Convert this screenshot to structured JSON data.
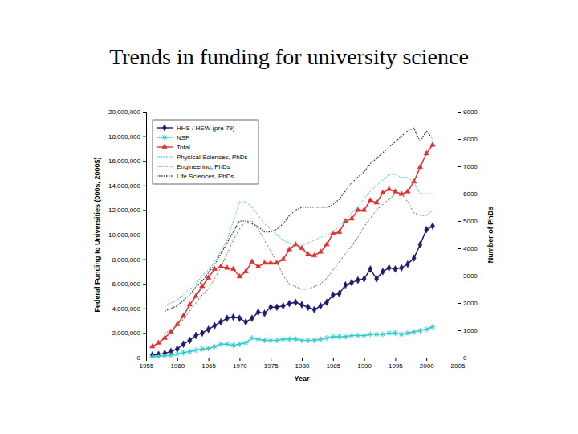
{
  "chart_data": {
    "type": "line",
    "title": "Trends in funding for university science",
    "xlabel": "Year",
    "ylabel": "Federal Funding to Universities (000s, 2000$)",
    "y2label": "Number of PhDs",
    "legend": "top-left",
    "x": [
      1956,
      1957,
      1958,
      1959,
      1960,
      1961,
      1962,
      1963,
      1964,
      1965,
      1966,
      1967,
      1968,
      1969,
      1970,
      1971,
      1972,
      1973,
      1974,
      1975,
      1976,
      1977,
      1978,
      1979,
      1980,
      1981,
      1982,
      1983,
      1984,
      1985,
      1986,
      1987,
      1988,
      1989,
      1990,
      1991,
      1992,
      1993,
      1994,
      1995,
      1996,
      1997,
      1998,
      1999,
      2000,
      2001
    ],
    "xlim": [
      1955,
      2005
    ],
    "xticks": [
      1955,
      1960,
      1965,
      1970,
      1975,
      1980,
      1985,
      1990,
      1995,
      2000,
      2005
    ],
    "ylim": [
      0,
      20000000
    ],
    "yticks": [
      0,
      {
        "value": 2000000,
        "label": "2,000,000"
      },
      {
        "value": 4000000,
        "label": "4,000,000"
      },
      {
        "value": 6000000,
        "label": "6,000,000"
      },
      {
        "value": 8000000,
        "label": "8,000,000"
      },
      {
        "value": 10000000,
        "label": "10,000,000"
      },
      {
        "value": 12000000,
        "label": "12,000,000"
      },
      {
        "value": 14000000,
        "label": "14,000,000"
      },
      {
        "value": 16000000,
        "label": "16,000,000"
      },
      {
        "value": 18000000,
        "label": "18,000,000"
      },
      {
        "value": 20000000,
        "label": "20,000,000"
      }
    ],
    "y2lim": [
      0,
      9000
    ],
    "y2ticks": [
      0,
      1000,
      2000,
      3000,
      4000,
      5000,
      6000,
      7000,
      8000,
      9000
    ],
    "series": [
      {
        "name": "HHS / HEW (pre 79)",
        "color": "#1c1c6e",
        "marker": "diamond",
        "line_style": "solid",
        "values": [
          200000,
          250000,
          350000,
          500000,
          700000,
          1100000,
          1400000,
          1800000,
          2000000,
          2300000,
          2600000,
          2900000,
          3200000,
          3300000,
          3200000,
          2900000,
          3200000,
          3700000,
          3600000,
          4100000,
          4100000,
          4200000,
          4400000,
          4500000,
          4300000,
          4100000,
          3900000,
          4200000,
          4500000,
          5100000,
          5200000,
          5900000,
          6100000,
          6300000,
          6400000,
          7200000,
          6400000,
          7000000,
          7300000,
          7200000,
          7300000,
          7600000,
          8100000,
          9200000,
          10400000,
          10700000
        ]
      },
      {
        "name": "NSF",
        "color": "#33cccc",
        "marker": "asterisk",
        "line_style": "solid",
        "values": [
          50000,
          100000,
          150000,
          200000,
          300000,
          400000,
          500000,
          600000,
          700000,
          750000,
          900000,
          1100000,
          1100000,
          1000000,
          1100000,
          1200000,
          1600000,
          1500000,
          1400000,
          1400000,
          1400000,
          1500000,
          1500000,
          1500000,
          1400000,
          1400000,
          1400000,
          1500000,
          1600000,
          1700000,
          1700000,
          1700000,
          1800000,
          1800000,
          1800000,
          1900000,
          1900000,
          1900000,
          2000000,
          2000000,
          1900000,
          2000000,
          2100000,
          2200000,
          2300000,
          2500000
        ]
      },
      {
        "name": "Total",
        "color": "#e03030",
        "marker": "triangle",
        "line_style": "solid",
        "values": [
          900000,
          1200000,
          1600000,
          2100000,
          2700000,
          3400000,
          4300000,
          5000000,
          5800000,
          6500000,
          7200000,
          7400000,
          7300000,
          7200000,
          6600000,
          7000000,
          7800000,
          7400000,
          7700000,
          7700000,
          7700000,
          8000000,
          8800000,
          9200000,
          8900000,
          8400000,
          8300000,
          8600000,
          9200000,
          10100000,
          10200000,
          11100000,
          11300000,
          12000000,
          12000000,
          12800000,
          12600000,
          13400000,
          13700000,
          13500000,
          13300000,
          13500000,
          14300000,
          15500000,
          16600000,
          17300000
        ]
      },
      {
        "name": "Physical Sciences, PhDs",
        "color": "#66cccc",
        "marker": "none",
        "line_style": "dotted",
        "axis": "y2",
        "values": [
          null,
          null,
          1900,
          2000,
          2100,
          2300,
          2500,
          2700,
          3000,
          3200,
          3500,
          3900,
          4300,
          5000,
          5700,
          5700,
          5500,
          5200,
          4900,
          4700,
          4500,
          4300,
          4200,
          4100,
          4100,
          4200,
          4300,
          4400,
          4500,
          4600,
          4800,
          5000,
          5300,
          5500,
          5800,
          6100,
          6300,
          6500,
          6700,
          6700,
          6600,
          6600,
          6400,
          6000,
          6000,
          6000
        ]
      },
      {
        "name": "Engineering, PhDs",
        "color": "#808080",
        "marker": "none",
        "line_style": "dotted",
        "axis": "y2",
        "values": [
          null,
          null,
          900,
          1000,
          1200,
          1400,
          1700,
          2000,
          2300,
          2500,
          2900,
          3300,
          3800,
          4300,
          4700,
          5000,
          5000,
          4700,
          4300,
          3900,
          3500,
          3000,
          2700,
          2600,
          2500,
          2500,
          2600,
          2700,
          2900,
          3200,
          3500,
          3800,
          4100,
          4400,
          4800,
          5100,
          5400,
          5600,
          5800,
          6000,
          6000,
          5700,
          5300,
          5200,
          5200,
          5400
        ]
      },
      {
        "name": "Life Sciences, PhDs",
        "color": "#333333",
        "marker": "none",
        "line_style": "dotted",
        "axis": "y2",
        "values": [
          null,
          null,
          1700,
          1800,
          1900,
          2100,
          2300,
          2600,
          2800,
          3100,
          3400,
          3800,
          4200,
          4600,
          5000,
          5000,
          4900,
          4800,
          4600,
          4600,
          4700,
          4900,
          5200,
          5400,
          5500,
          5500,
          5500,
          5500,
          5500,
          5600,
          5800,
          6100,
          6400,
          6600,
          6800,
          7100,
          7300,
          7500,
          7700,
          7900,
          8100,
          8300,
          8400,
          7900,
          8300,
          8000
        ]
      }
    ]
  }
}
